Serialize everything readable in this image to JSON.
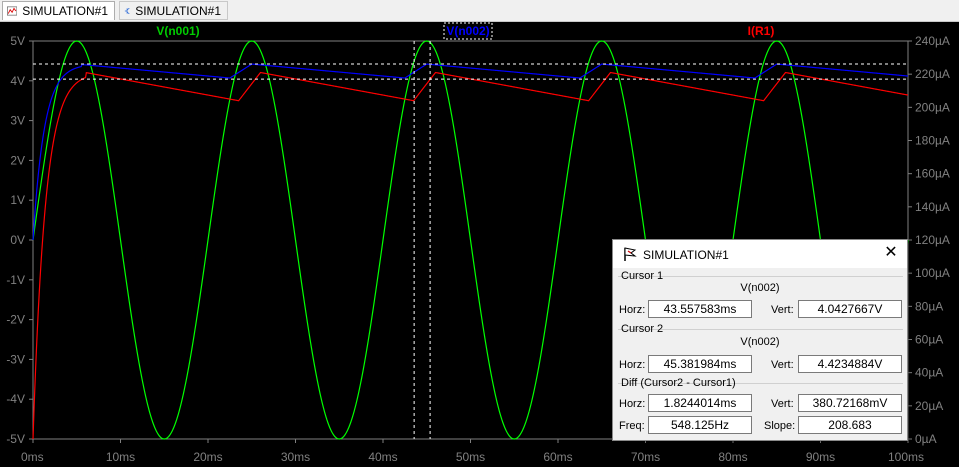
{
  "tabs": [
    {
      "label": "SIMULATION#1",
      "icon": "waveform-icon"
    },
    {
      "label": "SIMULATION#1",
      "icon": "schematic-icon"
    }
  ],
  "plot": {
    "background": "#000000",
    "left_axis_ticks": [
      "5V",
      "4V",
      "3V",
      "2V",
      "1V",
      "0V",
      "-1V",
      "-2V",
      "-3V",
      "-4V",
      "-5V"
    ],
    "right_axis_ticks": [
      "240µA",
      "220µA",
      "200µA",
      "180µA",
      "160µA",
      "140µA",
      "120µA",
      "100µA",
      "80µA",
      "60µA",
      "40µA",
      "20µA",
      "0µA"
    ],
    "x_axis_ticks": [
      "0ms",
      "10ms",
      "20ms",
      "30ms",
      "40ms",
      "50ms",
      "60ms",
      "70ms",
      "80ms",
      "90ms",
      "100ms"
    ],
    "trace_labels": [
      {
        "label": "V(n001)",
        "color": "#00cc00"
      },
      {
        "label": "V(n002)",
        "color": "#0000ff"
      },
      {
        "label": "I(R1)",
        "color": "#ff0000"
      }
    ],
    "colors": {
      "v_n001": "#00ff00",
      "v_n002": "#0000ff",
      "i_r1": "#ff0000",
      "cursor": "#ffffff"
    },
    "traces": {
      "v_n001": {
        "type": "sine",
        "amplitude_v": 5,
        "frequency_hz": 50
      },
      "v_n002": {
        "peak_v": 4.42,
        "valley_v": 4.07
      },
      "i_r1": {
        "peak_ua": 221,
        "valley_ua": 204
      }
    },
    "cursors": {
      "cursor1_ms": 43.557583,
      "cursor1_v": 4.0427667,
      "cursor2_ms": 45.381984,
      "cursor2_v": 4.4234884
    }
  },
  "dialog": {
    "title": "SIMULATION#1",
    "close": "✕",
    "cursor1": {
      "heading": "Cursor 1",
      "trace": "V(n002)",
      "horz_label": "Horz:",
      "horz": "43.557583ms",
      "vert_label": "Vert:",
      "vert": "4.0427667V"
    },
    "cursor2": {
      "heading": "Cursor 2",
      "trace": "V(n002)",
      "horz_label": "Horz:",
      "horz": "45.381984ms",
      "vert_label": "Vert:",
      "vert": "4.4234884V"
    },
    "diff": {
      "heading": "Diff (Cursor2 - Cursor1)",
      "horz_label": "Horz:",
      "horz": "1.8244014ms",
      "vert_label": "Vert:",
      "vert": "380.72168mV",
      "freq_label": "Freq:",
      "freq": "548.125Hz",
      "slope_label": "Slope:",
      "slope": "208.683"
    }
  }
}
